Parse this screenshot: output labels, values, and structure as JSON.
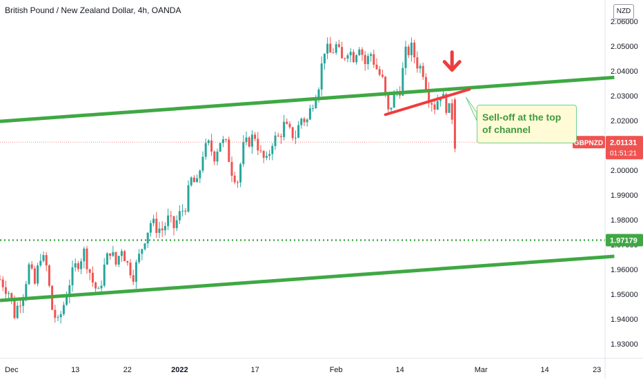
{
  "chart_data": {
    "type": "candlestick",
    "title": "British Pound / New Zealand Dollar, 4h, OANDA",
    "currency": "NZD",
    "symbol": "GBPNZD",
    "last_price": "2.01131",
    "countdown": "01:51:21",
    "level_label": "1.97179",
    "level_value": 1.97179,
    "annotation": "Sell-off at the top of channel",
    "y_ticks": [
      "2.06000",
      "2.05000",
      "2.04000",
      "2.03000",
      "2.02000",
      "2.01000",
      "2.00000",
      "1.99000",
      "1.98000",
      "1.97000",
      "1.96000",
      "1.95000",
      "1.94000",
      "1.93000"
    ],
    "y_tick_values": [
      2.06,
      2.05,
      2.04,
      2.03,
      2.02,
      2.01,
      2.0,
      1.99,
      1.98,
      1.97,
      1.96,
      1.95,
      1.94,
      1.93
    ],
    "ylim": [
      1.9225,
      2.0645
    ],
    "x_ticks": [
      {
        "label": "Dec",
        "bar": 4
      },
      {
        "label": "13",
        "bar": 26
      },
      {
        "label": "22",
        "bar": 44
      },
      {
        "label": "2022",
        "bar": 62
      },
      {
        "label": "17",
        "bar": 88
      },
      {
        "label": "Feb",
        "bar": 116
      },
      {
        "label": "14",
        "bar": 138
      },
      {
        "label": "Mar",
        "bar": 166
      },
      {
        "label": "14",
        "bar": 188
      },
      {
        "label": "23",
        "bar": 206
      }
    ],
    "xlim": [
      0,
      212
    ],
    "path": [
      [
        0,
        1.956
      ],
      [
        3,
        1.951
      ],
      [
        5,
        1.942
      ],
      [
        8,
        1.951
      ],
      [
        10,
        1.961
      ],
      [
        12,
        1.954
      ],
      [
        14,
        1.966
      ],
      [
        16,
        1.961
      ],
      [
        18,
        1.944
      ],
      [
        20,
        1.938
      ],
      [
        22,
        1.946
      ],
      [
        24,
        1.955
      ],
      [
        26,
        1.961
      ],
      [
        29,
        1.967
      ],
      [
        32,
        1.955
      ],
      [
        34,
        1.95
      ],
      [
        36,
        1.961
      ],
      [
        38,
        1.968
      ],
      [
        40,
        1.962
      ],
      [
        42,
        1.969
      ],
      [
        44,
        1.962
      ],
      [
        46,
        1.958
      ],
      [
        48,
        1.965
      ],
      [
        50,
        1.973
      ],
      [
        52,
        1.979
      ],
      [
        54,
        1.977
      ],
      [
        56,
        1.976
      ],
      [
        58,
        1.98
      ],
      [
        60,
        1.977
      ],
      [
        62,
        1.982
      ],
      [
        64,
        1.986
      ],
      [
        66,
        1.996
      ],
      [
        68,
        1.994
      ],
      [
        70,
        2.007
      ],
      [
        72,
        2.01
      ],
      [
        74,
        2.006
      ],
      [
        76,
        2.012
      ],
      [
        78,
        2.01
      ],
      [
        80,
        2.0
      ],
      [
        82,
        1.996
      ],
      [
        84,
        2.009
      ],
      [
        86,
        2.012
      ],
      [
        88,
        2.014
      ],
      [
        90,
        2.006
      ],
      [
        92,
        2.003
      ],
      [
        94,
        2.012
      ],
      [
        96,
        2.013
      ],
      [
        98,
        2.018
      ],
      [
        100,
        2.015
      ],
      [
        102,
        2.014
      ],
      [
        104,
        2.021
      ],
      [
        106,
        2.02
      ],
      [
        108,
        2.028
      ],
      [
        110,
        2.035
      ],
      [
        112,
        2.049
      ],
      [
        114,
        2.047
      ],
      [
        116,
        2.05
      ],
      [
        118,
        2.044
      ],
      [
        120,
        2.049
      ],
      [
        122,
        2.046
      ],
      [
        124,
        2.051
      ],
      [
        126,
        2.043
      ],
      [
        128,
        2.047
      ],
      [
        130,
        2.041
      ],
      [
        132,
        2.036
      ],
      [
        134,
        2.023
      ],
      [
        136,
        2.03
      ],
      [
        138,
        2.033
      ],
      [
        140,
        2.047
      ],
      [
        142,
        2.049
      ],
      [
        144,
        2.043
      ],
      [
        146,
        2.04
      ],
      [
        148,
        2.03
      ],
      [
        150,
        2.026
      ],
      [
        152,
        2.031
      ],
      [
        154,
        2.026
      ],
      [
        156,
        2.022
      ],
      [
        157,
        2.011
      ]
    ],
    "channel_upper": [
      [
        0,
        2.0197
      ],
      [
        212,
        2.0374
      ]
    ],
    "channel_lower": [
      [
        0,
        1.9475
      ],
      [
        212,
        1.9653
      ]
    ],
    "red_trendline": [
      [
        133,
        2.0224
      ],
      [
        162,
        2.0326
      ]
    ],
    "arrow_bar": 156,
    "arrow_price": 2.0415,
    "grid": false,
    "legend": "none"
  },
  "colors": {
    "up": "#26a69a",
    "down": "#ef5350",
    "channel": "#3fa844",
    "trendline": "#ef3c3c",
    "price_tag": "#ef5350",
    "level_tag": "#3fa844"
  }
}
